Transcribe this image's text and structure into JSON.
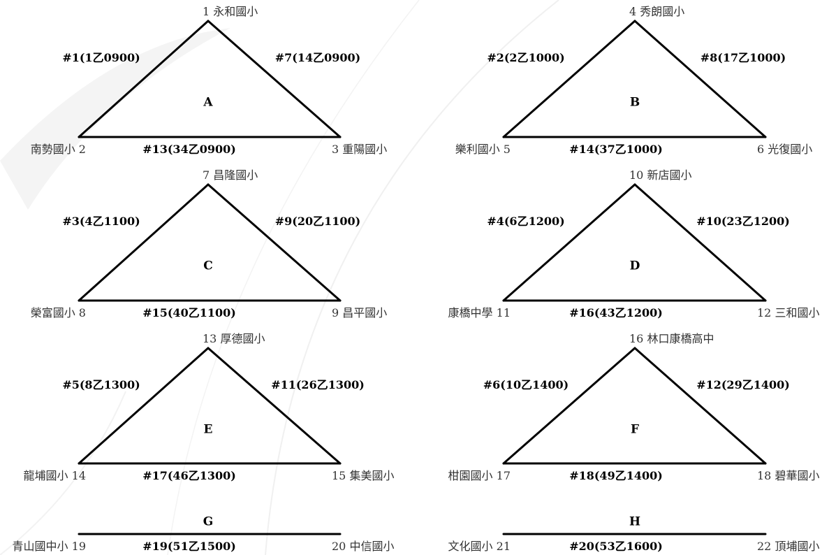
{
  "brackets": [
    {
      "group": "A",
      "shape": "triangle",
      "top": {
        "num": "1",
        "name": "永和國小"
      },
      "left": {
        "num": "2",
        "name": "南勢國小"
      },
      "right": {
        "num": "3",
        "name": "重陽國小"
      },
      "match_left": "#1(1乙0900)",
      "match_right": "#7(14乙0900)",
      "match_bottom": "#13(34乙0900)"
    },
    {
      "group": "B",
      "shape": "triangle",
      "top": {
        "num": "4",
        "name": "秀朗國小"
      },
      "left": {
        "num": "5",
        "name": "樂利國小"
      },
      "right": {
        "num": "6",
        "name": "光復國小"
      },
      "match_left": "#2(2乙1000)",
      "match_right": "#8(17乙1000)",
      "match_bottom": "#14(37乙1000)"
    },
    {
      "group": "C",
      "shape": "triangle",
      "top": {
        "num": "7",
        "name": "昌隆國小"
      },
      "left": {
        "num": "8",
        "name": "榮富國小"
      },
      "right": {
        "num": "9",
        "name": "昌平國小"
      },
      "match_left": "#3(4乙1100)",
      "match_right": "#9(20乙1100)",
      "match_bottom": "#15(40乙1100)"
    },
    {
      "group": "D",
      "shape": "triangle",
      "top": {
        "num": "10",
        "name": "新店國小"
      },
      "left": {
        "num": "11",
        "name": "康橋中學"
      },
      "right": {
        "num": "12",
        "name": "三和國小"
      },
      "match_left": "#4(6乙1200)",
      "match_right": "#10(23乙1200)",
      "match_bottom": "#16(43乙1200)"
    },
    {
      "group": "E",
      "shape": "triangle",
      "top": {
        "num": "13",
        "name": "厚德國小"
      },
      "left": {
        "num": "14",
        "name": "龍埔國小"
      },
      "right": {
        "num": "15",
        "name": "集美國小"
      },
      "match_left": "#5(8乙1300)",
      "match_right": "#11(26乙1300)",
      "match_bottom": "#17(46乙1300)"
    },
    {
      "group": "F",
      "shape": "triangle",
      "top": {
        "num": "16",
        "name": "林口康橋高中"
      },
      "left": {
        "num": "17",
        "name": "柑園國小"
      },
      "right": {
        "num": "18",
        "name": "碧華國小"
      },
      "match_left": "#6(10乙1400)",
      "match_right": "#12(29乙1400)",
      "match_bottom": "#18(49乙1400)"
    },
    {
      "group": "G",
      "shape": "line",
      "left": {
        "num": "19",
        "name": "青山國中小"
      },
      "right": {
        "num": "20",
        "name": "中信國小"
      },
      "match_bottom": "#19(51乙1500)"
    },
    {
      "group": "H",
      "shape": "line",
      "left": {
        "num": "21",
        "name": "文化國小"
      },
      "right": {
        "num": "22",
        "name": "頂埔國小"
      },
      "match_bottom": "#20(53乙1600)"
    }
  ]
}
